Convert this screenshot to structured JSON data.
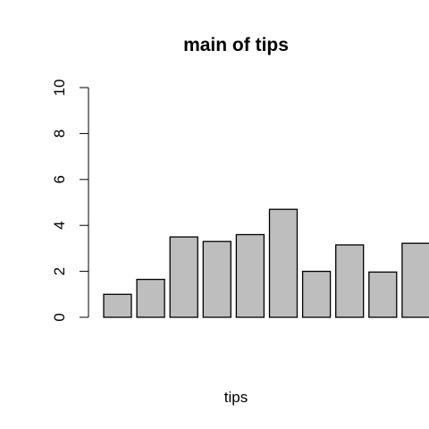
{
  "chart_data": {
    "type": "bar",
    "title": "main of tips",
    "xlabel": "tips",
    "ylabel": "",
    "ylim": [
      0,
      10
    ],
    "yticks": [
      "0",
      "2",
      "4",
      "6",
      "8",
      "10"
    ],
    "values": [
      1.0,
      1.65,
      3.5,
      3.3,
      3.6,
      4.7,
      2.0,
      3.15,
      1.97,
      3.22
    ],
    "bar_fill": "#bebebe",
    "bar_stroke": "#000000",
    "grid": false,
    "legend": "none"
  }
}
